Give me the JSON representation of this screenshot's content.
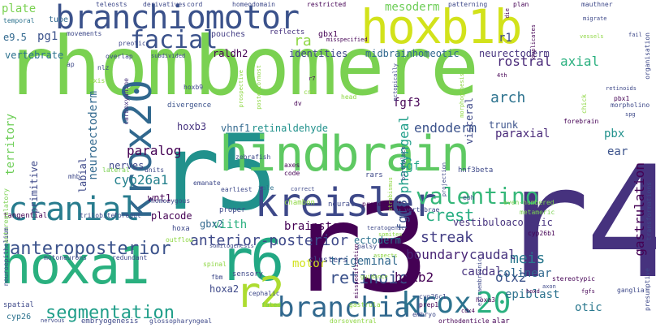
{
  "palette": {
    "background": "#ffffff"
  },
  "words": [
    {
      "text": "rhombomere",
      "color": "#7ad151",
      "size": 80
    },
    {
      "text": "r4",
      "color": "#46327e",
      "size": 180
    },
    {
      "text": "r3",
      "color": "#440154",
      "size": 120
    },
    {
      "text": "r5",
      "color": "#21918c",
      "size": 96
    },
    {
      "text": "hindbrain",
      "color": "#5ec962",
      "size": 54
    },
    {
      "text": "hoxb1b",
      "color": "#d2e21b",
      "size": 58
    },
    {
      "text": "branchiomotor",
      "color": "#3b528b",
      "size": 38
    },
    {
      "text": "hoxa1",
      "color": "#2ab07f",
      "size": 60
    },
    {
      "text": "r6",
      "color": "#22a884",
      "size": 64
    },
    {
      "text": "kreisler",
      "color": "#3e4989",
      "size": 46
    },
    {
      "text": "krox20",
      "color": "#31688e",
      "size": 48
    },
    {
      "text": "cranial",
      "color": "#287c8e",
      "size": 38
    },
    {
      "text": "r2",
      "color": "#addc30",
      "size": 50
    },
    {
      "text": "branchial",
      "color": "#31688e",
      "size": 34
    },
    {
      "text": "krox",
      "color": "#2c728e",
      "size": 36
    },
    {
      "text": "20",
      "color": "#2ab07f",
      "size": 36
    },
    {
      "text": "valentino",
      "color": "#35b779",
      "size": 28
    },
    {
      "text": "facial",
      "color": "#3b528b",
      "size": 30
    },
    {
      "text": "anteroposterior",
      "color": "#3b528b",
      "size": 22
    },
    {
      "text": "segmentation",
      "color": "#1f9e89",
      "size": 22
    },
    {
      "text": "anterior-posterior",
      "color": "#3e4989",
      "size": 18
    },
    {
      "text": "retinoic",
      "color": "#3b528b",
      "size": 20
    },
    {
      "text": "crest",
      "color": "#27ad81",
      "size": 20
    },
    {
      "text": "mesoderm",
      "color": "#6ece58",
      "size": 14
    },
    {
      "text": "rostral",
      "color": "#482878",
      "size": 16
    },
    {
      "text": "axial",
      "color": "#2ab07f",
      "size": 16
    },
    {
      "text": "arch",
      "color": "#2c728e",
      "size": 18
    },
    {
      "text": "endoderm",
      "color": "#3b528b",
      "size": 16
    },
    {
      "text": "paralog",
      "color": "#440154",
      "size": 16
    },
    {
      "text": "cyp26a1",
      "color": "#26828e",
      "size": 16
    },
    {
      "text": "meis",
      "color": "#2a788e",
      "size": 18
    },
    {
      "text": "streak",
      "color": "#433e85",
      "size": 18
    },
    {
      "text": "boundary",
      "color": "#482475",
      "size": 16
    },
    {
      "text": "caudal",
      "color": "#46327e",
      "size": 16
    },
    {
      "text": "otic",
      "color": "#2a788e",
      "size": 14
    },
    {
      "text": "otx2",
      "color": "#3b528b",
      "size": 16
    },
    {
      "text": "hoxb2",
      "color": "#440154",
      "size": 16
    },
    {
      "text": "fgf8",
      "color": "#3b528b",
      "size": 16
    },
    {
      "text": "trigeminal",
      "color": "#31688e",
      "size": 14
    },
    {
      "text": "epiblast",
      "color": "#2c728e",
      "size": 14
    },
    {
      "text": "colinear",
      "color": "#31688e",
      "size": 14
    },
    {
      "text": "caudal",
      "color": "#46327e",
      "size": 14
    },
    {
      "text": "hoxa2",
      "color": "#3e4989",
      "size": 12
    },
    {
      "text": "brainstem",
      "color": "#440154",
      "size": 14
    },
    {
      "text": "ectoderm",
      "color": "#2c728e",
      "size": 12
    },
    {
      "text": "viith",
      "color": "#2ab07f",
      "size": 14
    },
    {
      "text": "placode",
      "color": "#440154",
      "size": 12
    },
    {
      "text": "wnt1",
      "color": "#440154",
      "size": 12
    },
    {
      "text": "neuroectoderm",
      "color": "#31688e",
      "size": 14
    },
    {
      "text": "pharyngeal",
      "color": "#1f9e89",
      "size": 16
    },
    {
      "text": "gastrulation",
      "color": "#440154",
      "size": 16
    },
    {
      "text": "paraxial",
      "color": "#482878",
      "size": 14
    },
    {
      "text": "ear",
      "color": "#3b528b",
      "size": 14
    },
    {
      "text": "pbx",
      "color": "#21918c",
      "size": 14
    },
    {
      "text": "fgf3",
      "color": "#440154",
      "size": 14
    },
    {
      "text": "fgf",
      "color": "#20a486",
      "size": 14
    },
    {
      "text": "vhnf1",
      "color": "#31688e",
      "size": 12
    },
    {
      "text": "retinaldehyde",
      "color": "#21918c",
      "size": 12
    },
    {
      "text": "hoxb3",
      "color": "#46337f",
      "size": 12
    },
    {
      "text": "territory",
      "color": "#6ece58",
      "size": 14
    },
    {
      "text": "primitive",
      "color": "#3e4989",
      "size": 12
    },
    {
      "text": "labial",
      "color": "#3e4989",
      "size": 12
    },
    {
      "text": "nerves",
      "color": "#3e4989",
      "size": 12
    },
    {
      "text": "motor",
      "color": "#d2e21b",
      "size": 14
    },
    {
      "text": "gbx2",
      "color": "#31688e",
      "size": 12
    },
    {
      "text": "vestibuloacoustic",
      "color": "#46327e",
      "size": 12
    },
    {
      "text": "pg1",
      "color": "#3b528b",
      "size": 14
    },
    {
      "text": "vertebrate",
      "color": "#2c728e",
      "size": 12
    },
    {
      "text": "raldh2",
      "color": "#440154",
      "size": 12
    },
    {
      "text": "identities",
      "color": "#3e4989",
      "size": 12
    },
    {
      "text": "midbrainhomeotic",
      "color": "#31688e",
      "size": 12
    },
    {
      "text": "neurectoderm",
      "color": "#46327e",
      "size": 12
    },
    {
      "text": "trunk",
      "color": "#3b528b",
      "size": 12
    },
    {
      "text": "visceral",
      "color": "#3e4989",
      "size": 12
    },
    {
      "text": "pouches",
      "color": "#433e85",
      "size": 10
    },
    {
      "text": "reflects",
      "color": "#46327e",
      "size": 9
    },
    {
      "text": "gbx1",
      "color": "#440154",
      "size": 10
    },
    {
      "text": "ra",
      "color": "#8fd744",
      "size": 18
    },
    {
      "text": "r1",
      "color": "#3e4989",
      "size": 14
    },
    {
      "text": "e9.5",
      "color": "#31688e",
      "size": 12
    },
    {
      "text": "plate",
      "color": "#7ad151",
      "size": 14
    },
    {
      "text": "tube",
      "color": "#31688e",
      "size": 10
    },
    {
      "text": "temporal",
      "color": "#2c728e",
      "size": 8
    },
    {
      "text": "hoxb9",
      "color": "#3e4989",
      "size": 8
    },
    {
      "text": "axis",
      "color": "#8fd744",
      "size": 8
    },
    {
      "text": "nlz",
      "color": "#3e4989",
      "size": 8
    },
    {
      "text": "carboxyanine",
      "color": "#46327e",
      "size": 8
    },
    {
      "text": "divergence",
      "color": "#3b528b",
      "size": 9
    },
    {
      "text": "zebrafish",
      "color": "#3e4989",
      "size": 8
    },
    {
      "text": "tale",
      "color": "#2c728e",
      "size": 8
    },
    {
      "text": "axes",
      "color": "#440154",
      "size": 8
    },
    {
      "text": "code",
      "color": "#440154",
      "size": 8
    },
    {
      "text": "rars",
      "color": "#3e4989",
      "size": 9
    },
    {
      "text": "eph",
      "color": "#3e4989",
      "size": 8
    },
    {
      "text": "hnf3beta",
      "color": "#3e4989",
      "size": 9
    },
    {
      "text": "earliest",
      "color": "#3e4989",
      "size": 8
    },
    {
      "text": "emanate",
      "color": "#3e4989",
      "size": 8
    },
    {
      "text": "proper",
      "color": "#3e4989",
      "size": 9
    },
    {
      "text": "neural",
      "color": "#3e4989",
      "size": 9
    },
    {
      "text": "proceed",
      "color": "#440154",
      "size": 8
    },
    {
      "text": "chambon",
      "color": "#8fd744",
      "size": 9
    },
    {
      "text": "vertebrae",
      "color": "#3e4989",
      "size": 8
    },
    {
      "text": "even-numbered",
      "color": "#7ad151",
      "size": 8
    },
    {
      "text": "metameric",
      "color": "#7ad151",
      "size": 8
    },
    {
      "text": "cyp26b1",
      "color": "#440154",
      "size": 8
    },
    {
      "text": "homozygous",
      "color": "#3e4989",
      "size": 8
    },
    {
      "text": "tangential",
      "color": "#440154",
      "size": 9
    },
    {
      "text": "trilobite",
      "color": "#3e4989",
      "size": 8
    },
    {
      "text": "foregut",
      "color": "#3e4989",
      "size": 8
    },
    {
      "text": "hoxa",
      "color": "#3e4989",
      "size": 9
    },
    {
      "text": "outflow",
      "color": "#8fd744",
      "size": 8
    },
    {
      "text": "somitogenesis",
      "color": "#3e4989",
      "size": 7
    },
    {
      "text": "motoneurons",
      "color": "#3e4989",
      "size": 8
    },
    {
      "text": "redundant",
      "color": "#3e4989",
      "size": 8
    },
    {
      "text": "fbm",
      "color": "#3e4989",
      "size": 8
    },
    {
      "text": "sensory",
      "color": "#3e4989",
      "size": 9
    },
    {
      "text": "cephalic",
      "color": "#3e4989",
      "size": 8
    },
    {
      "text": "fated",
      "color": "#7ad151",
      "size": 8
    },
    {
      "text": "clusters",
      "color": "#3e4989",
      "size": 10
    },
    {
      "text": "guidance",
      "color": "#8fd744",
      "size": 7
    },
    {
      "text": "gastrula",
      "color": "#8fd744",
      "size": 8
    },
    {
      "text": "prep1",
      "color": "#440154",
      "size": 8
    },
    {
      "text": "cyp26c1",
      "color": "#3e4989",
      "size": 8
    },
    {
      "text": "hoxa3",
      "color": "#440154",
      "size": 8
    },
    {
      "text": "cdx4",
      "color": "#440154",
      "size": 7
    },
    {
      "text": "embryo",
      "color": "#3e4989",
      "size": 8
    },
    {
      "text": "dorsoventral",
      "color": "#8fd744",
      "size": 8
    },
    {
      "text": "orthodenticle",
      "color": "#440154",
      "size": 8
    },
    {
      "text": "alar",
      "color": "#440154",
      "size": 9
    },
    {
      "text": "spatial",
      "color": "#3e4989",
      "size": 9
    },
    {
      "text": "nervous",
      "color": "#3e4989",
      "size": 7
    },
    {
      "text": "cyp26",
      "color": "#2c728e",
      "size": 10
    },
    {
      "text": "embryogenesis",
      "color": "#3e4989",
      "size": 9
    },
    {
      "text": "glossopharyngeal",
      "color": "#3e4989",
      "size": 8
    },
    {
      "text": "teratogenic",
      "color": "#3e4989",
      "size": 7
    },
    {
      "text": "somites",
      "color": "#8fd744",
      "size": 7
    },
    {
      "text": "palsy",
      "color": "#3e4989",
      "size": 8
    },
    {
      "text": "aspects",
      "color": "#8fd744",
      "size": 7
    },
    {
      "text": "hoxd",
      "color": "#440154",
      "size": 7
    },
    {
      "text": "stereotypic",
      "color": "#440154",
      "size": 8
    },
    {
      "text": "fgfs",
      "color": "#440154",
      "size": 7
    },
    {
      "text": "ganglia",
      "color": "#3e4989",
      "size": 8
    },
    {
      "text": "presumptive",
      "color": "#3e4989",
      "size": 8
    },
    {
      "text": "axon",
      "color": "#3e4989",
      "size": 7
    },
    {
      "text": "transformations",
      "color": "#3e4989",
      "size": 8
    },
    {
      "text": "chick",
      "color": "#8fd744",
      "size": 8
    },
    {
      "text": "pbx1",
      "color": "#440154",
      "size": 8
    },
    {
      "text": "retinoids",
      "color": "#3e4989",
      "size": 7
    },
    {
      "text": "morpholino",
      "color": "#3e4989",
      "size": 8
    },
    {
      "text": "forebrain",
      "color": "#440154",
      "size": 8
    },
    {
      "text": "spg",
      "color": "#3e4989",
      "size": 7
    },
    {
      "text": "head",
      "color": "#8fd744",
      "size": 8
    },
    {
      "text": "cns",
      "color": "#8fd744",
      "size": 8
    },
    {
      "text": "dv",
      "color": "#440154",
      "size": 8
    },
    {
      "text": "teleosts",
      "color": "#3e4989",
      "size": 8
    },
    {
      "text": "derivatives",
      "color": "#3e4989",
      "size": 8
    },
    {
      "text": "cord",
      "color": "#3e4989",
      "size": 8
    },
    {
      "text": "homeodomain",
      "color": "#3e4989",
      "size": 8
    },
    {
      "text": "restricted",
      "color": "#440154",
      "size": 8
    },
    {
      "text": "patterning",
      "color": "#3e4989",
      "size": 8
    },
    {
      "text": "plan",
      "color": "#440154",
      "size": 8
    },
    {
      "text": "die",
      "color": "#440154",
      "size": 7
    },
    {
      "text": "mauthner",
      "color": "#3e4989",
      "size": 8
    },
    {
      "text": "migrate",
      "color": "#3e4989",
      "size": 7
    },
    {
      "text": "vessels",
      "color": "#8fd744",
      "size": 7
    },
    {
      "text": "fail",
      "color": "#3e4989",
      "size": 7
    },
    {
      "text": "movements",
      "color": "#3e4989",
      "size": 8
    },
    {
      "text": "preotic",
      "color": "#3e4989",
      "size": 8
    },
    {
      "text": "overlap",
      "color": "#3e4989",
      "size": 8
    },
    {
      "text": "subdivided",
      "color": "#3e4989",
      "size": 7
    },
    {
      "text": "misspecified",
      "color": "#440154",
      "size": 7
    },
    {
      "text": "duplicates",
      "color": "#440154",
      "size": 7
    },
    {
      "text": "4th",
      "color": "#440154",
      "size": 7
    },
    {
      "text": "organisation",
      "color": "#3e4989",
      "size": 8
    },
    {
      "text": "ap",
      "color": "#3e4989",
      "size": 8
    },
    {
      "text": "mhb",
      "color": "#3e4989",
      "size": 8
    },
    {
      "text": "units",
      "color": "#3e4989",
      "size": 8
    },
    {
      "text": "lateral",
      "color": "#7ad151",
      "size": 8
    },
    {
      "text": "autoregulatory",
      "color": "#7ad151",
      "size": 8
    },
    {
      "text": "neuroepithelium",
      "color": "#3e4989",
      "size": 8
    },
    {
      "text": "posteriormost",
      "color": "#8fd744",
      "size": 7
    },
    {
      "text": "prospective",
      "color": "#8fd744",
      "size": 7
    },
    {
      "text": "morphogenesis",
      "color": "#8fd744",
      "size": 7
    },
    {
      "text": "birthplace",
      "color": "#3e4989",
      "size": 7
    },
    {
      "text": "ectopically",
      "color": "#3e4989",
      "size": 7
    },
    {
      "text": "strabismus",
      "color": "#8fd744",
      "size": 7
    },
    {
      "text": "projection",
      "color": "#3e4989",
      "size": 7
    },
    {
      "text": "extraembryonic",
      "color": "#3e4989",
      "size": 7
    },
    {
      "text": "misspecification",
      "color": "#440154",
      "size": 7
    },
    {
      "text": "spinal",
      "color": "#8fd744",
      "size": 8
    },
    {
      "text": "correct",
      "color": "#3e4989",
      "size": 7
    },
    {
      "text": "r7",
      "color": "#440154",
      "size": 7
    }
  ]
}
